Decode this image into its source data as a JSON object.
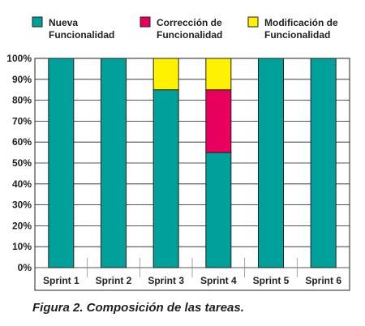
{
  "chart_data": {
    "type": "bar",
    "stacked": true,
    "categories": [
      "Sprint 1",
      "Sprint 2",
      "Sprint 3",
      "Sprint 4",
      "Sprint 5",
      "Sprint 6"
    ],
    "series": [
      {
        "name": "Nueva Funcionalidad",
        "name_lines": [
          "Nueva",
          "Funcionalidad"
        ],
        "color": "#00a19a",
        "values": [
          100,
          100,
          85,
          55,
          100,
          100
        ]
      },
      {
        "name": "Corrección de Funcionalidad",
        "name_lines": [
          "Corrección de",
          "Funcionalidad"
        ],
        "color": "#e8005c",
        "values": [
          0,
          0,
          0,
          30,
          0,
          0
        ]
      },
      {
        "name": "Modificación de Funcionalidad",
        "name_lines": [
          "Modificación de",
          "Funcionalidad"
        ],
        "color": "#fff200",
        "values": [
          0,
          0,
          15,
          15,
          0,
          0
        ]
      }
    ],
    "y_ticks": [
      "0%",
      "10%",
      "20%",
      "30%",
      "40%",
      "50%",
      "60%",
      "70%",
      "80%",
      "90%",
      "100%"
    ],
    "ylim": [
      0,
      100
    ],
    "grid": true,
    "legend_position": "top",
    "caption": "Figura 2. Composición de las tareas."
  }
}
